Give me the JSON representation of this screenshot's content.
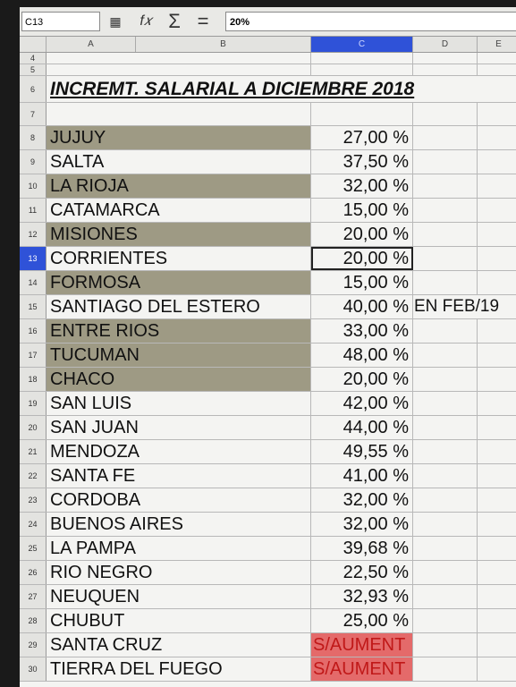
{
  "formula_bar": {
    "cell_ref": "C13",
    "value": "20%",
    "icons": [
      "function-wizard-icon",
      "sum-icon",
      "equals-icon"
    ]
  },
  "columns": [
    {
      "label": "A",
      "selected": false
    },
    {
      "label": "B",
      "selected": false
    },
    {
      "label": "C",
      "selected": true
    },
    {
      "label": "D",
      "selected": false
    },
    {
      "label": "E",
      "selected": false
    }
  ],
  "title_row": {
    "num": "6",
    "text": "INCREMT. SALARIAL A DICIEMBRE 2018"
  },
  "empty_rows": [
    "4",
    "5",
    "7"
  ],
  "rows": [
    {
      "num": "8",
      "province": "JUJUY",
      "increment": "27,00 %",
      "note": ""
    },
    {
      "num": "9",
      "province": "SALTA",
      "increment": "37,50 %",
      "note": ""
    },
    {
      "num": "10",
      "province": "LA RIOJA",
      "increment": "32,00 %",
      "note": ""
    },
    {
      "num": "11",
      "province": "CATAMARCA",
      "increment": "15,00 %",
      "note": ""
    },
    {
      "num": "12",
      "province": "MISIONES",
      "increment": "20,00 %",
      "note": ""
    },
    {
      "num": "13",
      "province": "CORRIENTES",
      "increment": "20,00 %",
      "note": ""
    },
    {
      "num": "14",
      "province": "FORMOSA",
      "increment": "15,00 %",
      "note": ""
    },
    {
      "num": "15",
      "province": "SANTIAGO DEL ESTERO",
      "increment": "40,00 %",
      "note": "EN FEB/19"
    },
    {
      "num": "16",
      "province": "ENTRE RIOS",
      "increment": "33,00 %",
      "note": ""
    },
    {
      "num": "17",
      "province": "TUCUMAN",
      "increment": "48,00 %",
      "note": ""
    },
    {
      "num": "18",
      "province": "CHACO",
      "increment": "20,00 %",
      "note": ""
    },
    {
      "num": "19",
      "province": "SAN LUIS",
      "increment": "42,00 %",
      "note": ""
    },
    {
      "num": "20",
      "province": "SAN JUAN",
      "increment": "44,00 %",
      "note": ""
    },
    {
      "num": "21",
      "province": "MENDOZA",
      "increment": "49,55 %",
      "note": ""
    },
    {
      "num": "22",
      "province": "SANTA FE",
      "increment": "41,00 %",
      "note": ""
    },
    {
      "num": "23",
      "province": "CORDOBA",
      "increment": "32,00 %",
      "note": ""
    },
    {
      "num": "24",
      "province": "BUENOS AIRES",
      "increment": "32,00 %",
      "note": ""
    },
    {
      "num": "25",
      "province": "LA PAMPA",
      "increment": "39,68 %",
      "note": ""
    },
    {
      "num": "26",
      "province": "RIO NEGRO",
      "increment": "22,50 %",
      "note": ""
    },
    {
      "num": "27",
      "province": "NEUQUEN",
      "increment": "32,93 %",
      "note": ""
    },
    {
      "num": "28",
      "province": "CHUBUT",
      "increment": "25,00 %",
      "note": ""
    },
    {
      "num": "29",
      "province": "SANTA CRUZ",
      "increment": "S/AUMENT",
      "note": ""
    },
    {
      "num": "30",
      "province": "TIERRA DEL FUEGO",
      "increment": "S/AUMENT",
      "note": ""
    }
  ],
  "colors": {
    "shaded_row": "#9e9a84",
    "no_increase_fill": "#e46a6a",
    "no_increase_text": "#c01818",
    "selection": "#2f52d8"
  }
}
